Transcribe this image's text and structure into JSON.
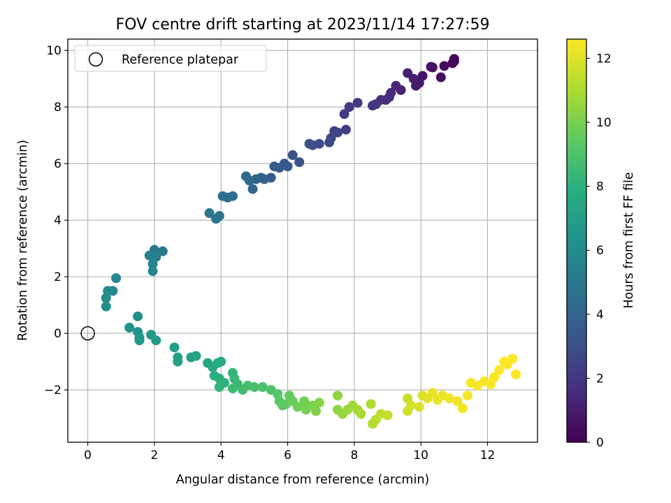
{
  "chart_data": {
    "type": "scatter",
    "title": "FOV centre drift starting at 2023/11/14 17:27:59",
    "xlabel": "Angular distance from reference (arcmin)",
    "ylabel": "Rotation from reference (arcmin)",
    "xlim": [
      -0.6,
      13.5
    ],
    "ylim": [
      -3.85,
      10.4
    ],
    "x_ticks": [
      0,
      2,
      4,
      6,
      8,
      10,
      12
    ],
    "y_ticks": [
      -2,
      0,
      2,
      4,
      6,
      8,
      10
    ],
    "grid": true,
    "legend": {
      "placement": "upper-left",
      "entries": [
        "Reference platepar"
      ]
    },
    "reference_point": {
      "x": 0,
      "y": 0,
      "label": "Reference platepar"
    },
    "colorbar": {
      "label": "Hours from first FF file",
      "min": 0,
      "max": 12.6,
      "ticks": [
        0,
        2,
        4,
        6,
        8,
        10,
        12
      ],
      "colormap": "viridis"
    },
    "series": [
      {
        "points": [
          [
            11.0,
            9.7,
            0.05
          ],
          [
            10.95,
            9.55,
            0.15
          ],
          [
            11.0,
            9.62,
            0.25
          ],
          [
            10.7,
            9.45,
            0.35
          ],
          [
            10.6,
            9.05,
            0.45
          ],
          [
            10.35,
            9.4,
            0.55
          ],
          [
            10.3,
            9.42,
            0.65
          ],
          [
            10.05,
            9.1,
            0.75
          ],
          [
            9.95,
            8.85,
            0.85
          ],
          [
            9.85,
            8.75,
            0.95
          ],
          [
            9.78,
            9.0,
            1.05
          ],
          [
            9.6,
            9.2,
            1.15
          ],
          [
            9.4,
            8.6,
            1.25
          ],
          [
            9.25,
            8.75,
            1.35
          ],
          [
            9.1,
            8.5,
            1.45
          ],
          [
            9.05,
            8.35,
            1.55
          ],
          [
            8.95,
            8.25,
            1.65
          ],
          [
            8.8,
            8.25,
            1.75
          ],
          [
            8.65,
            8.1,
            1.85
          ],
          [
            8.55,
            8.05,
            1.95
          ],
          [
            8.1,
            8.15,
            2.05
          ],
          [
            7.85,
            8.0,
            2.15
          ],
          [
            7.7,
            7.75,
            2.25
          ],
          [
            7.75,
            7.2,
            2.35
          ],
          [
            7.5,
            7.1,
            2.45
          ],
          [
            7.4,
            7.15,
            2.55
          ],
          [
            7.3,
            6.9,
            2.65
          ],
          [
            7.25,
            6.75,
            2.75
          ],
          [
            6.95,
            6.7,
            2.85
          ],
          [
            6.75,
            6.65,
            2.95
          ],
          [
            6.65,
            6.7,
            3.05
          ],
          [
            6.35,
            6.05,
            3.15
          ],
          [
            6.15,
            6.3,
            3.25
          ],
          [
            6.0,
            5.9,
            3.35
          ],
          [
            5.9,
            6.0,
            3.45
          ],
          [
            5.75,
            5.85,
            3.55
          ],
          [
            5.6,
            5.9,
            3.65
          ],
          [
            5.5,
            5.5,
            3.75
          ],
          [
            5.3,
            5.45,
            3.85
          ],
          [
            5.2,
            5.5,
            3.95
          ],
          [
            5.05,
            5.45,
            4.05
          ],
          [
            4.95,
            5.1,
            4.15
          ],
          [
            4.85,
            5.4,
            4.25
          ],
          [
            4.75,
            5.55,
            4.35
          ],
          [
            4.35,
            4.85,
            4.45
          ],
          [
            4.2,
            4.8,
            4.55
          ],
          [
            4.05,
            4.85,
            4.65
          ],
          [
            3.95,
            4.15,
            4.75
          ],
          [
            3.85,
            4.05,
            4.85
          ],
          [
            3.65,
            4.25,
            4.95
          ],
          [
            2.25,
            2.9,
            5.05
          ],
          [
            2.0,
            2.95,
            5.15
          ],
          [
            1.95,
            2.75,
            5.25
          ],
          [
            2.05,
            2.7,
            5.35
          ],
          [
            1.85,
            2.75,
            5.45
          ],
          [
            1.95,
            2.45,
            5.55
          ],
          [
            1.95,
            2.2,
            5.65
          ],
          [
            0.85,
            1.95,
            5.75
          ],
          [
            0.75,
            1.5,
            5.85
          ],
          [
            0.6,
            1.5,
            5.95
          ],
          [
            0.55,
            1.25,
            6.05
          ],
          [
            0.55,
            0.95,
            6.15
          ],
          [
            1.5,
            0.6,
            6.25
          ],
          [
            1.25,
            0.2,
            6.35
          ],
          [
            1.5,
            0.05,
            6.45
          ],
          [
            1.55,
            -0.15,
            6.55
          ],
          [
            1.55,
            -0.25,
            6.65
          ],
          [
            1.9,
            -0.05,
            6.75
          ],
          [
            2.05,
            -0.25,
            6.85
          ],
          [
            2.6,
            -0.5,
            6.95
          ],
          [
            2.7,
            -0.85,
            7.05
          ],
          [
            2.7,
            -1.0,
            7.15
          ],
          [
            3.1,
            -0.85,
            7.25
          ],
          [
            3.25,
            -0.8,
            7.35
          ],
          [
            3.6,
            -1.05,
            7.45
          ],
          [
            3.75,
            -1.2,
            7.55
          ],
          [
            3.9,
            -1.05,
            7.65
          ],
          [
            4.0,
            -1.0,
            7.75
          ],
          [
            3.8,
            -1.5,
            7.85
          ],
          [
            3.95,
            -1.6,
            7.95
          ],
          [
            4.1,
            -1.75,
            8.05
          ],
          [
            3.95,
            -1.9,
            8.15
          ],
          [
            4.35,
            -1.4,
            8.25
          ],
          [
            4.4,
            -1.6,
            8.35
          ],
          [
            4.5,
            -1.8,
            8.45
          ],
          [
            4.35,
            -1.95,
            8.55
          ],
          [
            4.65,
            -2.0,
            8.65
          ],
          [
            4.8,
            -1.85,
            8.75
          ],
          [
            5.0,
            -1.9,
            8.85
          ],
          [
            5.25,
            -1.9,
            8.95
          ],
          [
            5.5,
            -2.0,
            9.05
          ],
          [
            5.7,
            -2.15,
            9.15
          ],
          [
            5.75,
            -2.4,
            9.25
          ],
          [
            5.85,
            -2.55,
            9.35
          ],
          [
            5.95,
            -2.5,
            9.45
          ],
          [
            6.05,
            -2.2,
            9.55
          ],
          [
            6.15,
            -2.4,
            9.65
          ],
          [
            6.3,
            -2.6,
            9.75
          ],
          [
            6.5,
            -2.4,
            9.85
          ],
          [
            6.55,
            -2.7,
            9.95
          ],
          [
            6.75,
            -2.55,
            10.05
          ],
          [
            6.85,
            -2.75,
            10.15
          ],
          [
            6.95,
            -2.45,
            10.25
          ],
          [
            7.5,
            -2.2,
            10.35
          ],
          [
            7.5,
            -2.7,
            10.45
          ],
          [
            7.65,
            -2.85,
            10.55
          ],
          [
            7.8,
            -2.7,
            10.65
          ],
          [
            7.95,
            -2.55,
            10.75
          ],
          [
            8.1,
            -2.7,
            10.85
          ],
          [
            8.2,
            -2.85,
            10.95
          ],
          [
            8.5,
            -2.5,
            11.05
          ],
          [
            8.55,
            -3.2,
            11.15
          ],
          [
            8.65,
            -3.05,
            11.25
          ],
          [
            8.8,
            -2.85,
            11.35
          ],
          [
            9.0,
            -2.9,
            11.45
          ],
          [
            9.6,
            -2.3,
            11.55
          ],
          [
            9.6,
            -2.75,
            11.65
          ],
          [
            9.7,
            -2.55,
            11.75
          ],
          [
            9.95,
            -2.6,
            11.85
          ],
          [
            10.05,
            -2.2,
            11.95
          ],
          [
            10.2,
            -2.3,
            12.05
          ],
          [
            10.35,
            -2.1,
            12.15
          ],
          [
            10.5,
            -2.35,
            12.2
          ],
          [
            10.65,
            -2.2,
            12.25
          ],
          [
            10.85,
            -2.3,
            12.3
          ],
          [
            11.1,
            -2.4,
            12.35
          ],
          [
            11.25,
            -2.65,
            12.4
          ],
          [
            11.4,
            -2.2,
            12.42
          ],
          [
            11.5,
            -1.75,
            12.45
          ],
          [
            11.7,
            -1.85,
            12.48
          ],
          [
            11.9,
            -1.7,
            12.5
          ],
          [
            12.1,
            -1.8,
            12.52
          ],
          [
            12.2,
            -1.55,
            12.54
          ],
          [
            12.35,
            -1.3,
            12.56
          ],
          [
            12.5,
            -1.0,
            12.57
          ],
          [
            12.6,
            -1.1,
            12.58
          ],
          [
            12.75,
            -0.9,
            12.59
          ],
          [
            12.85,
            -1.45,
            12.6
          ]
        ]
      }
    ]
  }
}
